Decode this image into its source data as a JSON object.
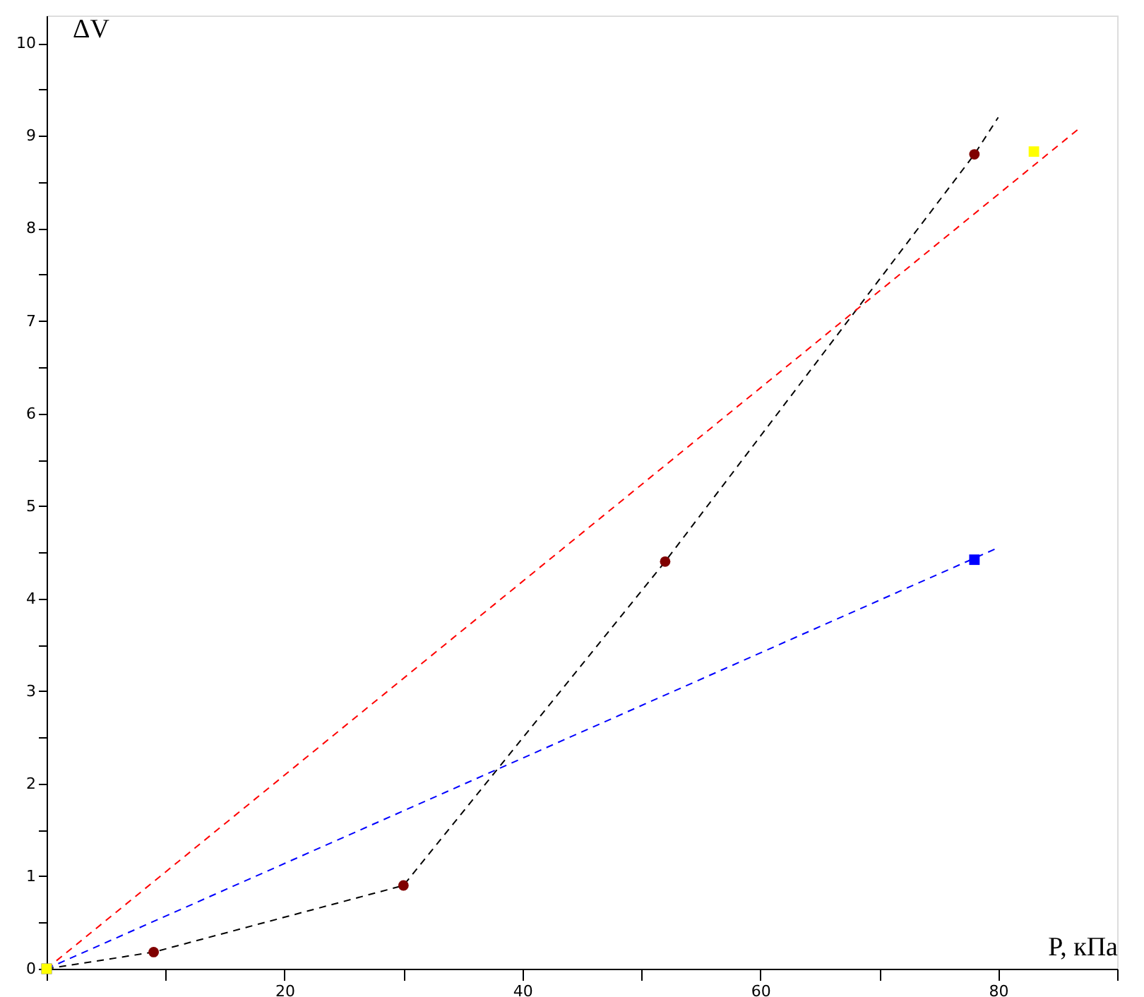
{
  "chart_data": {
    "type": "line",
    "xlabel": "P, кПа",
    "ylabel": "ΔV",
    "xlim": [
      0,
      90
    ],
    "ylim": [
      0,
      10.3
    ],
    "xticks": [
      {
        "value": 0,
        "label": null
      },
      {
        "value": 10,
        "label": null
      },
      20,
      {
        "value": 30,
        "label": null
      },
      40,
      {
        "value": 50,
        "label": null
      },
      60,
      {
        "value": 70,
        "label": null
      },
      80,
      {
        "value": 90,
        "label": null
      }
    ],
    "yticks": [
      0,
      {
        "value": 0.5,
        "label": null
      },
      1,
      {
        "value": 1.5,
        "label": null
      },
      2,
      {
        "value": 2.5,
        "label": null
      },
      3,
      {
        "value": 3.5,
        "label": null
      },
      4,
      {
        "value": 4.5,
        "label": null
      },
      5,
      {
        "value": 5.5,
        "label": null
      },
      6,
      {
        "value": 6.5,
        "label": null
      },
      7,
      {
        "value": 7.5,
        "label": null
      },
      8,
      {
        "value": 8.5,
        "label": null
      },
      9,
      {
        "value": 9.5,
        "label": null
      },
      10
    ],
    "grid": false,
    "series": [
      {
        "color": "#000000",
        "line_style": "dashed",
        "x": [
          0,
          9,
          30,
          52,
          78,
          80
        ],
        "values": [
          0,
          0.18,
          0.9,
          4.4,
          8.8,
          9.2
        ]
      },
      {
        "color": "#ff0000",
        "line_style": "dashed",
        "x": [
          0,
          87
        ],
        "values": [
          0,
          9.1
        ]
      },
      {
        "color": "#0000ff",
        "line_style": "dashed",
        "x": [
          0,
          80
        ],
        "values": [
          0,
          4.55
        ]
      },
      {
        "type": "scatter",
        "color": "#800000",
        "marker": "circle",
        "x": [
          9,
          30,
          52,
          78
        ],
        "values": [
          0.18,
          0.9,
          4.4,
          8.8
        ]
      },
      {
        "type": "scatter",
        "color": "#0000ff",
        "marker": "square",
        "x": [
          0,
          78
        ],
        "values": [
          0,
          4.42
        ]
      },
      {
        "type": "scatter",
        "color": "#ffff00",
        "marker": "square",
        "x": [
          0,
          83
        ],
        "values": [
          0,
          8.83
        ]
      }
    ]
  }
}
